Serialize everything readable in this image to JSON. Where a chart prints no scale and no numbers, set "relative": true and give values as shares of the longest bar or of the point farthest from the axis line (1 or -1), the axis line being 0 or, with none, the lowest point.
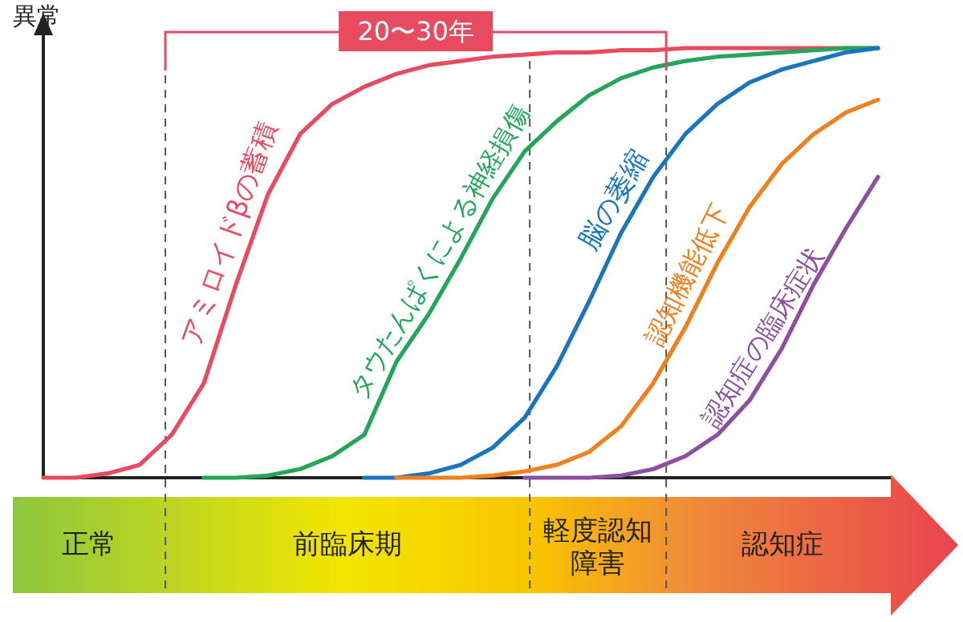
{
  "chart_data": {
    "type": "line",
    "relative": true,
    "ylabel": "異常",
    "marker": "none",
    "line_style": "solid",
    "categories": [
      null,
      null,
      null,
      null,
      null,
      null,
      null,
      null,
      null,
      null,
      null,
      null,
      null,
      null,
      null,
      null,
      null,
      null,
      null,
      null,
      null,
      null,
      null,
      null,
      null,
      null,
      null
    ],
    "series": [
      {
        "name": "アミロイドβの蓄積",
        "color": "#e84a5f",
        "values": [
          0,
          0,
          0.01,
          0.03,
          0.1,
          0.22,
          0.45,
          0.66,
          0.8,
          0.87,
          0.91,
          0.94,
          0.96,
          0.97,
          0.98,
          0.985,
          0.99,
          0.99,
          0.995,
          0.995,
          1,
          1,
          1,
          1,
          1,
          1,
          1
        ]
      },
      {
        "name": "タウたんぱくによる神経損傷",
        "color": "#23a55a",
        "values": [
          null,
          null,
          null,
          null,
          null,
          0,
          0,
          0.005,
          0.02,
          0.05,
          0.1,
          0.27,
          0.38,
          0.51,
          0.65,
          0.76,
          0.83,
          0.89,
          0.93,
          0.955,
          0.97,
          0.98,
          0.985,
          0.99,
          0.995,
          1,
          1
        ]
      },
      {
        "name": "脳の萎縮",
        "color": "#1a75bc",
        "values": [
          null,
          null,
          null,
          null,
          null,
          null,
          null,
          null,
          null,
          null,
          0,
          0,
          0.01,
          0.03,
          0.07,
          0.14,
          0.26,
          0.41,
          0.57,
          0.7,
          0.8,
          0.87,
          0.92,
          0.95,
          0.97,
          0.99,
          1
        ]
      },
      {
        "name": "認知機能低下",
        "color": "#f07f1e",
        "values": [
          null,
          null,
          null,
          null,
          null,
          null,
          null,
          null,
          null,
          null,
          null,
          0,
          0,
          0,
          0.005,
          0.015,
          0.03,
          0.06,
          0.12,
          0.22,
          0.35,
          0.5,
          0.63,
          0.73,
          0.8,
          0.85,
          0.88
        ]
      },
      {
        "name": "認知症の臨床症状",
        "color": "#8d4fa0",
        "values": [
          null,
          null,
          null,
          null,
          null,
          null,
          null,
          null,
          null,
          null,
          null,
          null,
          null,
          null,
          null,
          0,
          0,
          0,
          0.005,
          0.02,
          0.05,
          0.1,
          0.18,
          0.3,
          0.45,
          0.58,
          0.7
        ]
      }
    ],
    "annotations": [
      "20〜30年",
      "正常",
      "前臨床期",
      "軽度認知障害",
      "認知症"
    ]
  }
}
